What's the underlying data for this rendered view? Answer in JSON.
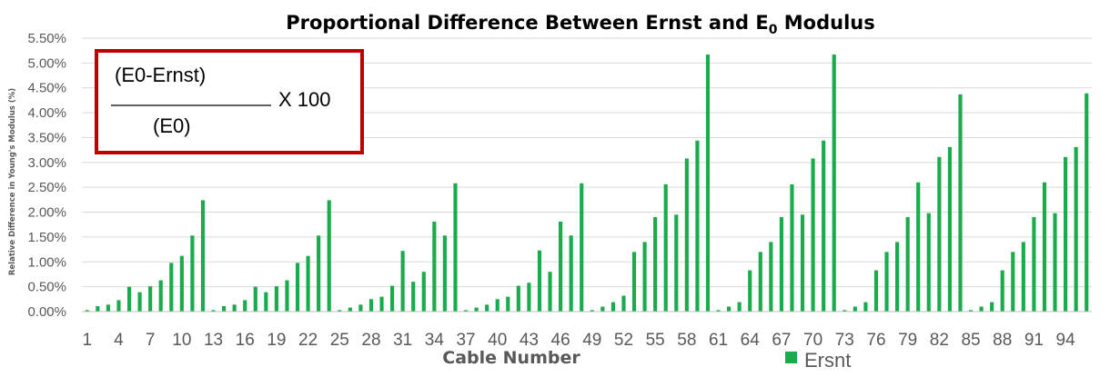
{
  "chart_data": {
    "type": "bar",
    "title_main": "Proportional Difference Between Ernst and E",
    "title_sub": "0",
    "title_tail": " Modulus",
    "xlabel": "Cable Number",
    "ylabel": "Relative Difference in Young's Modulus (%)",
    "ylim": [
      0,
      5.5
    ],
    "yticks": [
      "0.00%",
      "0.50%",
      "1.00%",
      "1.50%",
      "2.00%",
      "2.50%",
      "3.00%",
      "3.50%",
      "4.00%",
      "4.50%",
      "5.00%",
      "5.50%"
    ],
    "xtick_labels": [
      "1",
      "4",
      "7",
      "10",
      "13",
      "16",
      "19",
      "22",
      "25",
      "28",
      "31",
      "34",
      "37",
      "40",
      "43",
      "46",
      "49",
      "52",
      "55",
      "58",
      "61",
      "64",
      "67",
      "70",
      "73",
      "76",
      "79",
      "82",
      "85",
      "88",
      "91",
      "94"
    ],
    "grid": true,
    "legend_position": "bottom",
    "series": [
      {
        "name": "Ersnt",
        "color": "#1aac4c",
        "categories": [
          1,
          2,
          3,
          4,
          5,
          6,
          7,
          8,
          9,
          10,
          11,
          12,
          13,
          14,
          15,
          16,
          17,
          18,
          19,
          20,
          21,
          22,
          23,
          24,
          25,
          26,
          27,
          28,
          29,
          30,
          31,
          32,
          33,
          34,
          35,
          36,
          37,
          38,
          39,
          40,
          41,
          42,
          43,
          44,
          45,
          46,
          47,
          48,
          49,
          50,
          51,
          52,
          53,
          54,
          55,
          56,
          57,
          58,
          59,
          60,
          61,
          62,
          63,
          64,
          65,
          66,
          67,
          68,
          69,
          70,
          71,
          72,
          73,
          74,
          75,
          76,
          77,
          78,
          79,
          80,
          81,
          82,
          83,
          84,
          85,
          86,
          87,
          88,
          89,
          90,
          91,
          92,
          93,
          94,
          95,
          96
        ],
        "values": [
          0.03,
          0.11,
          0.14,
          0.23,
          0.5,
          0.39,
          0.51,
          0.63,
          0.98,
          1.12,
          1.53,
          2.24,
          0.03,
          0.11,
          0.14,
          0.23,
          0.5,
          0.39,
          0.51,
          0.63,
          0.98,
          1.12,
          1.53,
          2.24,
          0.03,
          0.08,
          0.14,
          0.25,
          0.3,
          0.52,
          1.22,
          0.6,
          0.8,
          1.81,
          1.53,
          2.58,
          0.03,
          0.08,
          0.14,
          0.25,
          0.3,
          0.52,
          0.58,
          1.23,
          0.8,
          1.81,
          1.53,
          2.58,
          0.03,
          0.1,
          0.19,
          0.32,
          1.2,
          1.4,
          1.9,
          2.56,
          1.95,
          3.08,
          3.44,
          5.17,
          0.03,
          0.1,
          0.19,
          0.83,
          1.2,
          1.4,
          1.9,
          2.56,
          1.95,
          3.08,
          3.44,
          5.17,
          0.03,
          0.1,
          0.19,
          0.83,
          1.2,
          1.4,
          1.9,
          2.6,
          1.98,
          3.11,
          3.31,
          4.37,
          0.03,
          0.1,
          0.19,
          0.83,
          1.2,
          1.4,
          1.9,
          2.6,
          1.98,
          3.11,
          3.31,
          4.39
        ]
      }
    ]
  },
  "formula_box": {
    "numerator": "(E0-Ernst)",
    "multiplier": "X 100",
    "denominator": "(E0)",
    "border_color": "#c00000"
  }
}
